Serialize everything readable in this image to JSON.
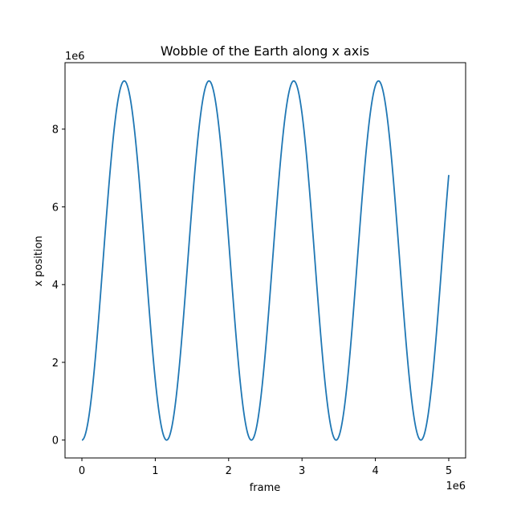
{
  "chart_data": {
    "type": "line",
    "title": "Wobble of the Earth along x axis",
    "xlabel": "frame",
    "ylabel": "x position",
    "x_offset_text": "1e6",
    "y_offset_text": "1e6",
    "xlim": [
      -230000,
      5230000
    ],
    "ylim": [
      -460000,
      9710000
    ],
    "x_ticks": [
      0,
      1000000,
      2000000,
      3000000,
      4000000,
      5000000
    ],
    "x_tick_labels": [
      "0",
      "1",
      "2",
      "3",
      "4",
      "5"
    ],
    "y_ticks": [
      0,
      2000000,
      4000000,
      6000000,
      8000000
    ],
    "y_tick_labels": [
      "0",
      "2",
      "4",
      "6",
      "8"
    ],
    "grid": false,
    "series": [
      {
        "color": "#1f77b4",
        "curve": {
          "form": "amplitude * (1 - cos(2*pi*x/period))",
          "amplitude": 4620000,
          "period": 1155000,
          "x_start": 0,
          "x_end": 5000000
        }
      }
    ]
  }
}
